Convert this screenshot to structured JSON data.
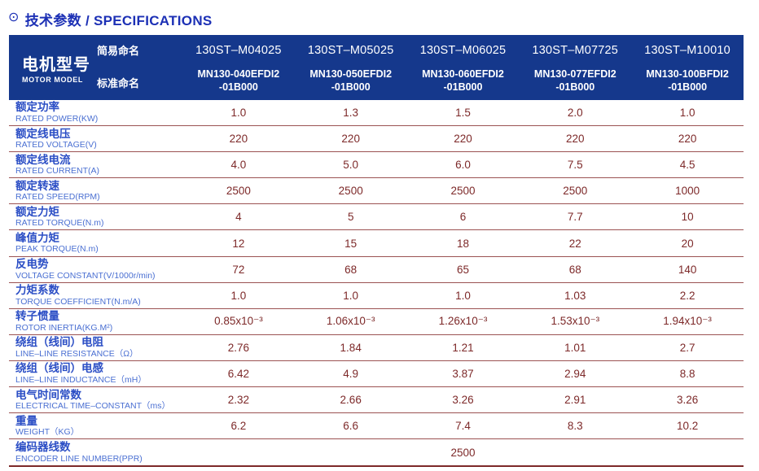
{
  "title": {
    "icon": "⊙",
    "text": "技术参数 / SPECIFICATIONS"
  },
  "colors": {
    "header_background": "#15388c",
    "title_blue": "#1c30b5",
    "label_cn_blue": "#2b4ec5",
    "label_en_blue": "#4a6fd2",
    "value_maroon": "#7d2929",
    "separator_line": "#9b5252"
  },
  "header": {
    "model_label_cn": "电机型号",
    "model_label_en": "MOTOR MODEL",
    "simple_name_label": "简易命名",
    "standard_name_label": "标准命名",
    "models": [
      {
        "simple": "130ST–M04025",
        "standard1": "MN130-040EFDI2",
        "standard2": "-01B000"
      },
      {
        "simple": "130ST–M05025",
        "standard1": "MN130-050EFDI2",
        "standard2": "-01B000"
      },
      {
        "simple": "130ST–M06025",
        "standard1": "MN130-060EFDI2",
        "standard2": "-01B000"
      },
      {
        "simple": "130ST–M07725",
        "standard1": "MN130-077EFDI2",
        "standard2": "-01B000"
      },
      {
        "simple": "130ST–M10010",
        "standard1": "MN130-100BFDI2",
        "standard2": "-01B000"
      }
    ]
  },
  "table": {
    "rows": [
      {
        "cn": "额定功率",
        "en": "RATED POWER(KW)",
        "values": [
          "1.0",
          "1.3",
          "1.5",
          "2.0",
          "1.0"
        ]
      },
      {
        "cn": "额定线电压",
        "en": "RATED VOLTAGE(V)",
        "values": [
          "220",
          "220",
          "220",
          "220",
          "220"
        ]
      },
      {
        "cn": "额定线电流",
        "en": "RATED CURRENT(A)",
        "values": [
          "4.0",
          "5.0",
          "6.0",
          "7.5",
          "4.5"
        ]
      },
      {
        "cn": "额定转速",
        "en": "RATED SPEED(RPM)",
        "values": [
          "2500",
          "2500",
          "2500",
          "2500",
          "1000"
        ]
      },
      {
        "cn": "额定力矩",
        "en": "RATED TORQUE(N.m)",
        "values": [
          "4",
          "5",
          "6",
          "7.7",
          "10"
        ]
      },
      {
        "cn": "峰值力矩",
        "en": "PEAK TORQUE(N.m)",
        "values": [
          "12",
          "15",
          "18",
          "22",
          "20"
        ]
      },
      {
        "cn": "反电势",
        "en": "VOLTAGE CONSTANT(V/1000r/min)",
        "values": [
          "72",
          "68",
          "65",
          "68",
          "140"
        ]
      },
      {
        "cn": "力矩系数",
        "en": "TORQUE COEFFICIENT(N.m/A)",
        "values": [
          "1.0",
          "1.0",
          "1.0",
          "1.03",
          "2.2"
        ]
      },
      {
        "cn": "转子惯量",
        "en": "ROTOR INERTIA(KG.M²)",
        "values": [
          "0.85x10⁻³",
          "1.06x10⁻³",
          "1.26x10⁻³",
          "1.53x10⁻³",
          "1.94x10⁻³"
        ]
      },
      {
        "cn": "绕组（线间）电阻",
        "en": "LINE–LINE RESISTANCE（Ω）",
        "values": [
          "2.76",
          "1.84",
          "1.21",
          "1.01",
          "2.7"
        ]
      },
      {
        "cn": "绕组（线间）电感",
        "en": "LINE–LINE INDUCTANCE（mH）",
        "values": [
          "6.42",
          "4.9",
          "3.87",
          "2.94",
          "8.8"
        ]
      },
      {
        "cn": "电气时间常数",
        "en": "ELECTRICAL TIME–CONSTANT（ms）",
        "values": [
          "2.32",
          "2.66",
          "3.26",
          "2.91",
          "3.26"
        ]
      },
      {
        "cn": "重量",
        "en": "WEIGHT（KG）",
        "values": [
          "6.2",
          "6.6",
          "7.4",
          "8.3",
          "10.2"
        ]
      },
      {
        "cn": "编码器线数",
        "en": "ENCODER LINE NUMBER(PPR)",
        "span": true,
        "values": [
          "2500"
        ]
      }
    ]
  }
}
